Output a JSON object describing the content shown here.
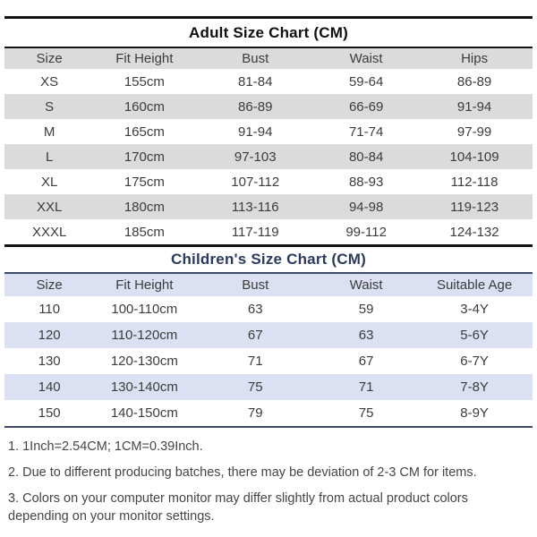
{
  "adult_table": {
    "title": "Adult Size Chart (CM)",
    "columns": [
      "Size",
      "Fit Height",
      "Bust",
      "Waist",
      "Hips"
    ],
    "rows": [
      [
        "XS",
        "155cm",
        "81-84",
        "59-64",
        "86-89"
      ],
      [
        "S",
        "160cm",
        "86-89",
        "66-69",
        "91-94"
      ],
      [
        "M",
        "165cm",
        "91-94",
        "71-74",
        "97-99"
      ],
      [
        "L",
        "170cm",
        "97-103",
        "80-84",
        "104-109"
      ],
      [
        "XL",
        "175cm",
        "107-112",
        "88-93",
        "112-118"
      ],
      [
        "XXL",
        "180cm",
        "113-116",
        "94-98",
        "119-123"
      ],
      [
        "XXXL",
        "185cm",
        "117-119",
        "99-112",
        "124-132"
      ]
    ]
  },
  "children_table": {
    "title": "Children's Size Chart (CM)",
    "columns": [
      "Size",
      "Fit Height",
      "Bust",
      "Waist",
      "Suitable Age"
    ],
    "rows": [
      [
        "110",
        "100-110cm",
        "63",
        "59",
        "3-4Y"
      ],
      [
        "120",
        "110-120cm",
        "67",
        "63",
        "5-6Y"
      ],
      [
        "130",
        "120-130cm",
        "71",
        "67",
        "6-7Y"
      ],
      [
        "140",
        "130-140cm",
        "75",
        "71",
        "7-8Y"
      ],
      [
        "150",
        "140-150cm",
        "79",
        "75",
        "8-9Y"
      ]
    ]
  },
  "notes": [
    "1. 1Inch=2.54CM; 1CM=0.39Inch.",
    "2. Due to different producing batches, there may be deviation of 2-3 CM for items.",
    "3. Colors on your computer monitor may differ slightly from actual product colors depending on your monitor settings."
  ],
  "colors": {
    "adult_row_alt": "#dbdbdb",
    "children_row_alt": "#dbe1f2",
    "adult_title_text": "#0f0f0f",
    "children_title_text": "#2b3a5f",
    "dark_rule": "#141414",
    "navy_rule": "#3c4a66",
    "body_text": "#3c3c3c"
  }
}
